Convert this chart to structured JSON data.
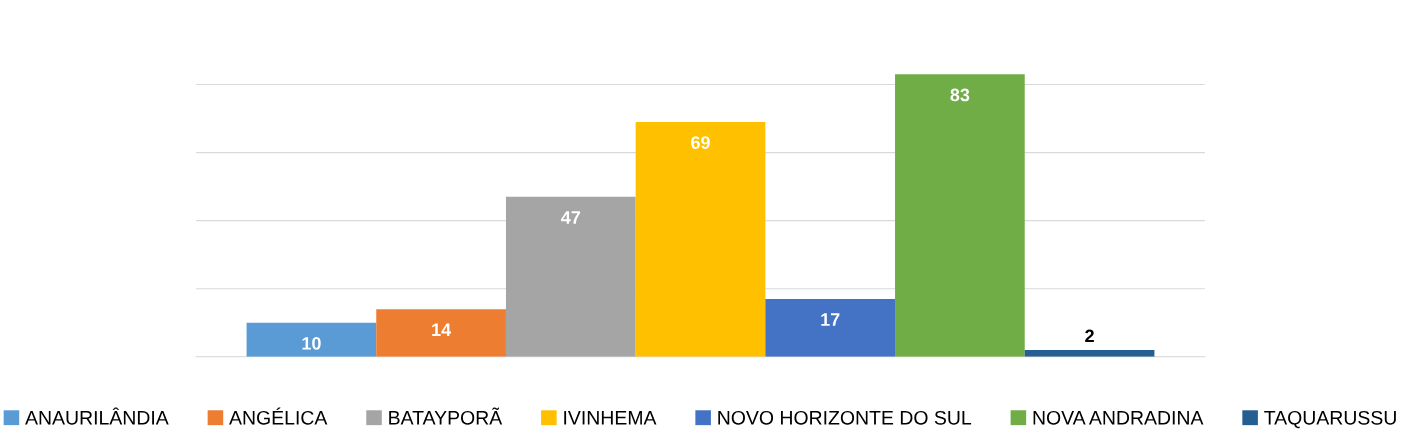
{
  "chart_data": {
    "type": "bar",
    "categories": [
      null
    ],
    "series": [
      {
        "name": "ANAURILÂNDIA",
        "color": "#5b9bd5",
        "values": [
          10
        ]
      },
      {
        "name": "ANGÉLICA",
        "color": "#ed7d31",
        "values": [
          14
        ]
      },
      {
        "name": "BATAYPORÃ",
        "color": "#a5a5a5",
        "values": [
          47
        ]
      },
      {
        "name": "IVINHEMA",
        "color": "#ffc000",
        "values": [
          69
        ]
      },
      {
        "name": "NOVO HORIZONTE DO SUL",
        "color": "#4472c4",
        "values": [
          17
        ]
      },
      {
        "name": "NOVA ANDRADINA",
        "color": "#70ad47",
        "values": [
          83
        ]
      },
      {
        "name": "TAQUARUSSU",
        "color": "#255e91",
        "values": [
          2
        ]
      }
    ],
    "data_labels": true,
    "grid": "y",
    "legend": "bottom",
    "tick_labels": false
  }
}
